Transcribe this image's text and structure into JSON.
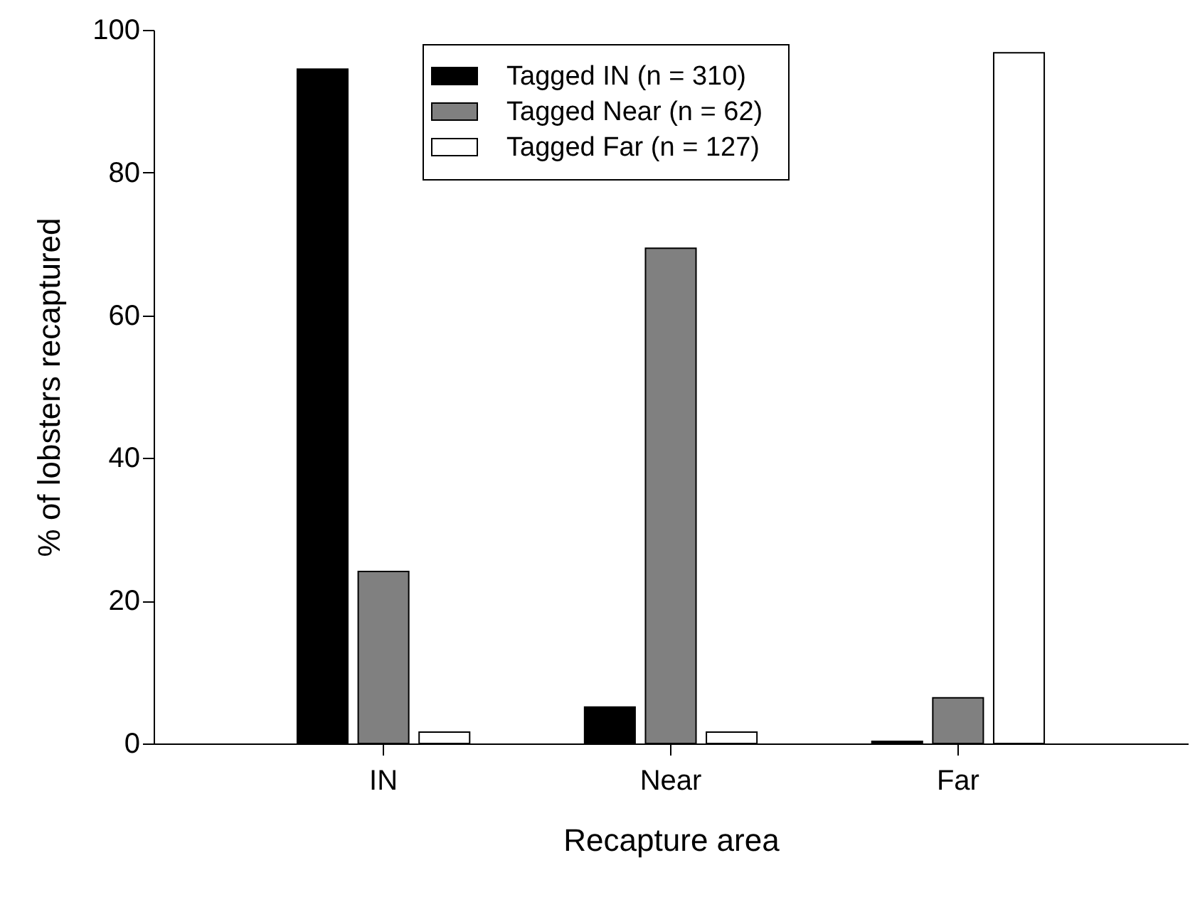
{
  "chart_data": {
    "type": "bar",
    "xlabel": "Recapture area",
    "ylabel": "% of lobsters recaptured",
    "categories": [
      "IN",
      "Near",
      "Far"
    ],
    "series": [
      {
        "name": "Tagged IN (n = 310)",
        "color": "#000000",
        "values": [
          94.5,
          5.1,
          0.3
        ]
      },
      {
        "name": "Tagged Near  (n = 62)",
        "color": "#808080",
        "values": [
          24.1,
          69.4,
          6.4
        ]
      },
      {
        "name": "Tagged Far (n = 127)",
        "color": "#ffffff",
        "values": [
          1.6,
          1.6,
          96.8
        ]
      }
    ],
    "ylim": [
      0,
      100
    ],
    "yticks": [
      0,
      20,
      40,
      60,
      80,
      100
    ],
    "grid": false,
    "legend": "top"
  }
}
